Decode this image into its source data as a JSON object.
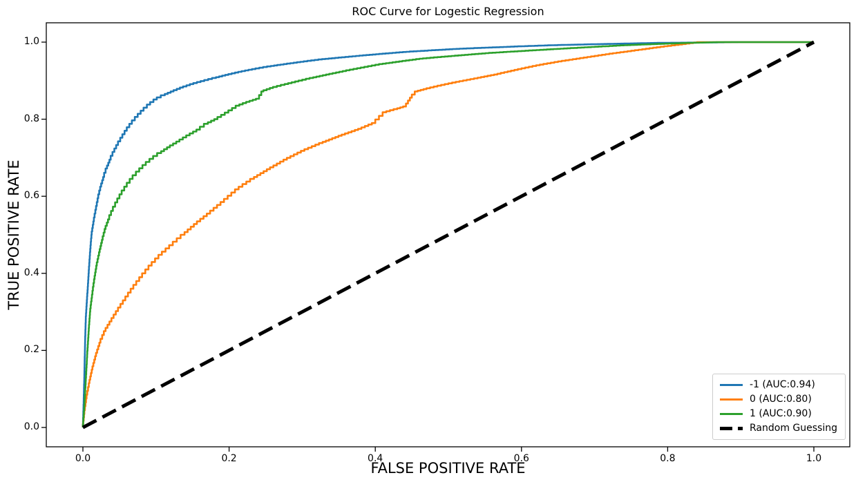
{
  "chart_data": {
    "type": "line",
    "title": "ROC Curve for Logestic Regression",
    "xlabel": "FALSE POSITIVE RATE",
    "ylabel": "TRUE POSITIVE RATE",
    "xlim": [
      -0.05,
      1.05
    ],
    "ylim": [
      -0.05,
      1.05
    ],
    "x_tick_labels": [
      "0.0",
      "0.2",
      "0.4",
      "0.6",
      "0.8",
      "1.0"
    ],
    "y_tick_labels": [
      "0.0",
      "0.2",
      "0.4",
      "0.6",
      "0.8",
      "1.0"
    ],
    "grid": false,
    "legend_position": "lower right",
    "series": [
      {
        "name": "-1 (AUC:0.94)",
        "class_label": "-1",
        "auc": 0.94,
        "color": "#1f77b4",
        "style": "solid",
        "points": [
          [
            0,
            0
          ],
          [
            0.001,
            0.06
          ],
          [
            0.002,
            0.13
          ],
          [
            0.003,
            0.22
          ],
          [
            0.004,
            0.28
          ],
          [
            0.006,
            0.34
          ],
          [
            0.008,
            0.4
          ],
          [
            0.01,
            0.455
          ],
          [
            0.012,
            0.5
          ],
          [
            0.015,
            0.535
          ],
          [
            0.018,
            0.565
          ],
          [
            0.021,
            0.595
          ],
          [
            0.025,
            0.625
          ],
          [
            0.029,
            0.65
          ],
          [
            0.033,
            0.672
          ],
          [
            0.038,
            0.695
          ],
          [
            0.043,
            0.715
          ],
          [
            0.048,
            0.733
          ],
          [
            0.054,
            0.752
          ],
          [
            0.06,
            0.77
          ],
          [
            0.067,
            0.788
          ],
          [
            0.075,
            0.806
          ],
          [
            0.083,
            0.822
          ],
          [
            0.092,
            0.838
          ],
          [
            0.101,
            0.851
          ],
          [
            0.112,
            0.862
          ],
          [
            0.124,
            0.872
          ],
          [
            0.137,
            0.882
          ],
          [
            0.151,
            0.891
          ],
          [
            0.166,
            0.899
          ],
          [
            0.182,
            0.907
          ],
          [
            0.199,
            0.915
          ],
          [
            0.217,
            0.923
          ],
          [
            0.236,
            0.93
          ],
          [
            0.257,
            0.937
          ],
          [
            0.279,
            0.943
          ],
          [
            0.302,
            0.949
          ],
          [
            0.327,
            0.955
          ],
          [
            0.354,
            0.96
          ],
          [
            0.383,
            0.965
          ],
          [
            0.414,
            0.97
          ],
          [
            0.447,
            0.975
          ],
          [
            0.482,
            0.979
          ],
          [
            0.52,
            0.983
          ],
          [
            0.56,
            0.986
          ],
          [
            0.6,
            0.989
          ],
          [
            0.645,
            0.992
          ],
          [
            0.69,
            0.994
          ],
          [
            0.74,
            0.996
          ],
          [
            0.79,
            0.998
          ],
          [
            0.85,
            0.999
          ],
          [
            0.9,
            1.0
          ],
          [
            1.0,
            1.0
          ]
        ]
      },
      {
        "name": "0 (AUC:0.80)",
        "class_label": "0",
        "auc": 0.8,
        "color": "#ff7f0e",
        "style": "solid",
        "points": [
          [
            0,
            0
          ],
          [
            0.002,
            0.035
          ],
          [
            0.005,
            0.075
          ],
          [
            0.009,
            0.115
          ],
          [
            0.013,
            0.15
          ],
          [
            0.018,
            0.185
          ],
          [
            0.024,
            0.22
          ],
          [
            0.031,
            0.25
          ],
          [
            0.039,
            0.275
          ],
          [
            0.048,
            0.302
          ],
          [
            0.058,
            0.33
          ],
          [
            0.069,
            0.36
          ],
          [
            0.081,
            0.39
          ],
          [
            0.094,
            0.42
          ],
          [
            0.108,
            0.448
          ],
          [
            0.123,
            0.473
          ],
          [
            0.139,
            0.5
          ],
          [
            0.156,
            0.528
          ],
          [
            0.174,
            0.555
          ],
          [
            0.193,
            0.585
          ],
          [
            0.213,
            0.618
          ],
          [
            0.234,
            0.645
          ],
          [
            0.256,
            0.67
          ],
          [
            0.279,
            0.695
          ],
          [
            0.303,
            0.718
          ],
          [
            0.328,
            0.738
          ],
          [
            0.354,
            0.757
          ],
          [
            0.381,
            0.775
          ],
          [
            0.4,
            0.79
          ],
          [
            0.415,
            0.818
          ],
          [
            0.43,
            0.826
          ],
          [
            0.442,
            0.833
          ],
          [
            0.45,
            0.856
          ],
          [
            0.458,
            0.872
          ],
          [
            0.47,
            0.878
          ],
          [
            0.49,
            0.887
          ],
          [
            0.515,
            0.897
          ],
          [
            0.54,
            0.906
          ],
          [
            0.567,
            0.916
          ],
          [
            0.595,
            0.928
          ],
          [
            0.625,
            0.94
          ],
          [
            0.655,
            0.95
          ],
          [
            0.69,
            0.96
          ],
          [
            0.725,
            0.97
          ],
          [
            0.76,
            0.979
          ],
          [
            0.795,
            0.988
          ],
          [
            0.825,
            0.995
          ],
          [
            0.845,
            1.0
          ],
          [
            1.0,
            1.0
          ]
        ]
      },
      {
        "name": "1 (AUC:0.90)",
        "class_label": "1",
        "auc": 0.9,
        "color": "#2ca02c",
        "style": "solid",
        "points": [
          [
            0,
            0
          ],
          [
            0.002,
            0.05
          ],
          [
            0.004,
            0.12
          ],
          [
            0.006,
            0.19
          ],
          [
            0.008,
            0.25
          ],
          [
            0.01,
            0.3
          ],
          [
            0.013,
            0.345
          ],
          [
            0.016,
            0.385
          ],
          [
            0.019,
            0.42
          ],
          [
            0.023,
            0.455
          ],
          [
            0.027,
            0.487
          ],
          [
            0.031,
            0.515
          ],
          [
            0.036,
            0.54
          ],
          [
            0.041,
            0.562
          ],
          [
            0.047,
            0.584
          ],
          [
            0.053,
            0.605
          ],
          [
            0.06,
            0.625
          ],
          [
            0.068,
            0.645
          ],
          [
            0.077,
            0.664
          ],
          [
            0.086,
            0.681
          ],
          [
            0.096,
            0.697
          ],
          [
            0.107,
            0.712
          ],
          [
            0.119,
            0.727
          ],
          [
            0.132,
            0.742
          ],
          [
            0.146,
            0.758
          ],
          [
            0.16,
            0.773
          ],
          [
            0.171,
            0.788
          ],
          [
            0.184,
            0.8
          ],
          [
            0.199,
            0.817
          ],
          [
            0.214,
            0.835
          ],
          [
            0.228,
            0.845
          ],
          [
            0.241,
            0.853
          ],
          [
            0.247,
            0.872
          ],
          [
            0.26,
            0.881
          ],
          [
            0.276,
            0.889
          ],
          [
            0.295,
            0.898
          ],
          [
            0.315,
            0.907
          ],
          [
            0.337,
            0.916
          ],
          [
            0.36,
            0.925
          ],
          [
            0.385,
            0.934
          ],
          [
            0.41,
            0.943
          ],
          [
            0.437,
            0.95
          ],
          [
            0.465,
            0.957
          ],
          [
            0.495,
            0.962
          ],
          [
            0.527,
            0.967
          ],
          [
            0.56,
            0.972
          ],
          [
            0.595,
            0.976
          ],
          [
            0.63,
            0.98
          ],
          [
            0.667,
            0.984
          ],
          [
            0.705,
            0.988
          ],
          [
            0.745,
            0.992
          ],
          [
            0.786,
            0.995
          ],
          [
            0.83,
            0.998
          ],
          [
            0.875,
            1.0
          ],
          [
            1.0,
            1.0
          ]
        ]
      },
      {
        "name": "Random Guessing",
        "color": "#000000",
        "style": "dashed",
        "points": [
          [
            0,
            0
          ],
          [
            1,
            1
          ]
        ]
      }
    ]
  }
}
